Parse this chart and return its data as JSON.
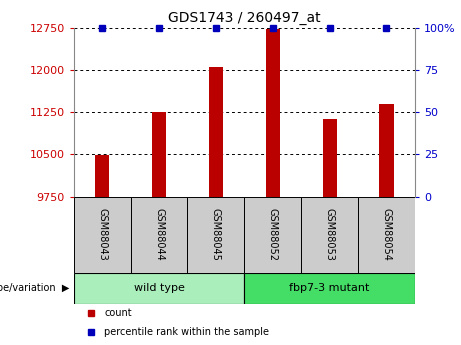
{
  "title": "GDS1743 / 260497_at",
  "samples": [
    "GSM88043",
    "GSM88044",
    "GSM88045",
    "GSM88052",
    "GSM88053",
    "GSM88054"
  ],
  "counts": [
    10490,
    11260,
    12050,
    12730,
    11120,
    11390
  ],
  "ylim_left": [
    9750,
    12750
  ],
  "ylim_right": [
    0,
    100
  ],
  "yticks_left": [
    9750,
    10500,
    11250,
    12000,
    12750
  ],
  "yticks_right": [
    0,
    25,
    50,
    75,
    100
  ],
  "bar_color": "#bb0000",
  "percentile_color": "#0000bb",
  "percentile_value": 12750,
  "groups": [
    {
      "label": "wild type",
      "indices": [
        0,
        1,
        2
      ],
      "color": "#aaeebb"
    },
    {
      "label": "fbp7-3 mutant",
      "indices": [
        3,
        4,
        5
      ],
      "color": "#44dd66"
    }
  ],
  "group_label": "genotype/variation",
  "legend_count_label": "count",
  "legend_percentile_label": "percentile rank within the sample",
  "tick_color_left": "#cc0000",
  "tick_color_right": "#0000cc",
  "bar_width": 0.25,
  "sample_box_color": "#cccccc"
}
